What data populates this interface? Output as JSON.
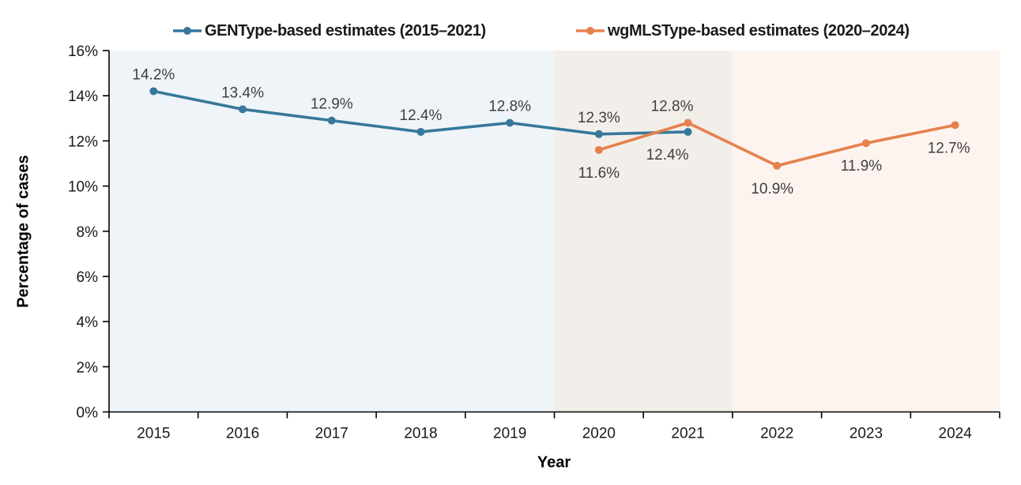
{
  "chart_data": {
    "type": "line",
    "title": "",
    "xlabel": "Year",
    "ylabel": "Percentage of cases",
    "categories": [
      2015,
      2016,
      2017,
      2018,
      2019,
      2020,
      2021,
      2022,
      2023,
      2024
    ],
    "x_tick_labels": [
      "2015",
      "2016",
      "2017",
      "2018",
      "2019",
      "2020",
      "2021",
      "2022",
      "2023",
      "2024"
    ],
    "y_ticks": [
      "0%",
      "2%",
      "4%",
      "6%",
      "8%",
      "10%",
      "12%",
      "14%",
      "16%"
    ],
    "ylim": [
      0,
      16
    ],
    "y_tick_step": 2,
    "grid": false,
    "legend_position": "top",
    "series": [
      {
        "name": "GENType-based estimates (2015–2021)",
        "color": "#36789B",
        "x": [
          2015,
          2016,
          2017,
          2018,
          2019,
          2020,
          2021
        ],
        "values": [
          14.2,
          13.4,
          12.9,
          12.4,
          12.8,
          12.3,
          12.4
        ],
        "labels": [
          "14.2%",
          "13.4%",
          "12.9%",
          "12.4%",
          "12.8%",
          "12.3%",
          "12.4%"
        ],
        "label_side": [
          "above",
          "above",
          "above",
          "above",
          "above",
          "above",
          "below"
        ],
        "label_dx": [
          0,
          0,
          0,
          0,
          0,
          0,
          -26
        ]
      },
      {
        "name": "wgMLSType-based estimates (2020–2024)",
        "color": "#E6814D",
        "x": [
          2020,
          2021,
          2022,
          2023,
          2024
        ],
        "values": [
          11.6,
          12.8,
          10.9,
          11.9,
          12.7
        ],
        "labels": [
          "11.6%",
          "12.8%",
          "10.9%",
          "11.9%",
          "12.7%"
        ],
        "label_side": [
          "below",
          "above",
          "below",
          "below",
          "below"
        ],
        "label_dx": [
          0,
          -20,
          -6,
          -6,
          -8
        ]
      }
    ],
    "background_bands": [
      {
        "from": 2014.5,
        "to": 2019.5,
        "color": "#EFF4F8"
      },
      {
        "from": 2019.5,
        "to": 2021.5,
        "color": "#F2EFEA"
      },
      {
        "from": 2021.5,
        "to": 2024.5,
        "color": "#FDF4F0"
      }
    ]
  }
}
